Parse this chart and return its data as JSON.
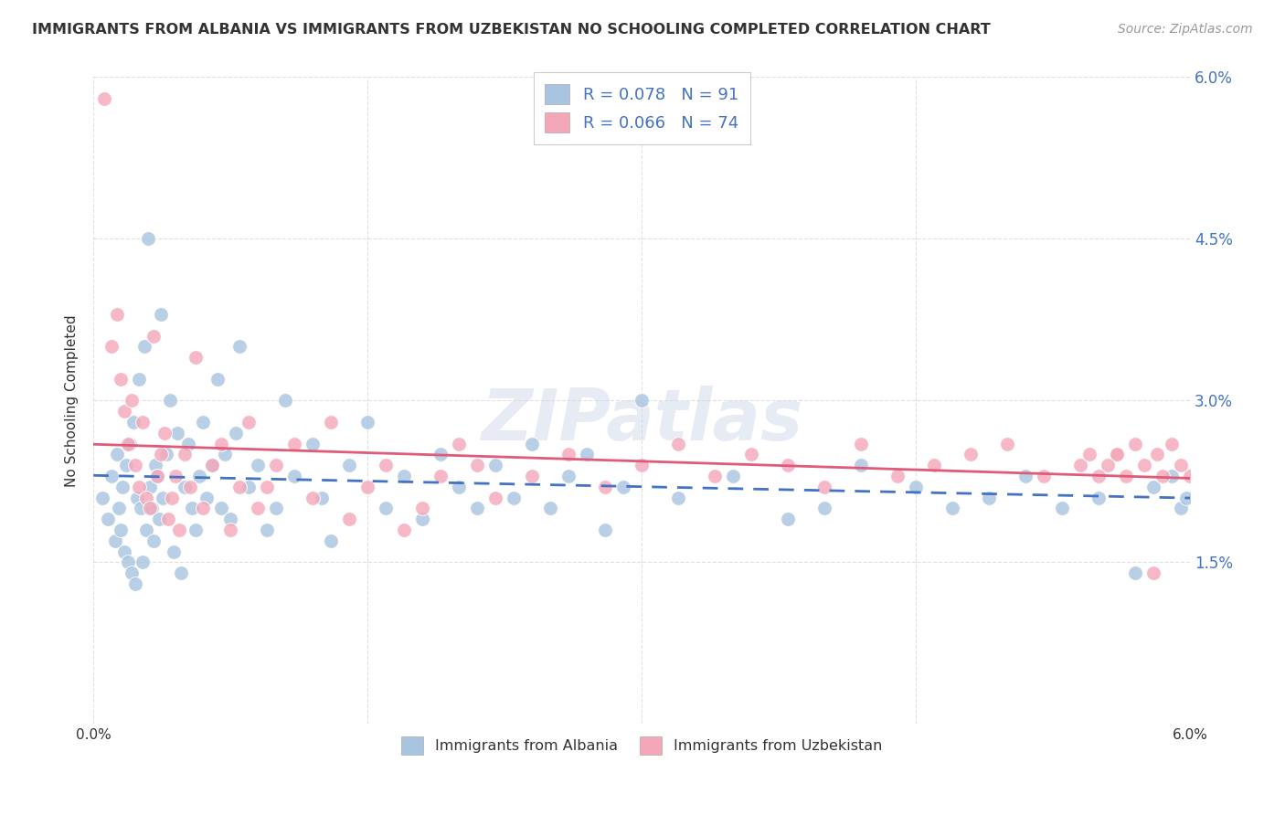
{
  "title": "IMMIGRANTS FROM ALBANIA VS IMMIGRANTS FROM UZBEKISTAN NO SCHOOLING COMPLETED CORRELATION CHART",
  "source": "Source: ZipAtlas.com",
  "ylabel": "No Schooling Completed",
  "xlim": [
    0.0,
    6.0
  ],
  "ylim": [
    0.0,
    6.0
  ],
  "albania_R": 0.078,
  "albania_N": 91,
  "uzbekistan_R": 0.066,
  "uzbekistan_N": 74,
  "albania_color": "#a8c4e0",
  "uzbekistan_color": "#f4a7b9",
  "albania_line_color": "#4472c4",
  "uzbekistan_line_color": "#e05a7a",
  "watermark": "ZIPatlas",
  "background_color": "#ffffff",
  "grid_color": "#cccccc",
  "tick_color": "#4472c4",
  "albania_x": [
    0.05,
    0.08,
    0.1,
    0.12,
    0.13,
    0.14,
    0.15,
    0.16,
    0.17,
    0.18,
    0.19,
    0.2,
    0.21,
    0.22,
    0.23,
    0.24,
    0.25,
    0.26,
    0.27,
    0.28,
    0.29,
    0.3,
    0.31,
    0.32,
    0.33,
    0.34,
    0.35,
    0.36,
    0.37,
    0.38,
    0.4,
    0.42,
    0.44,
    0.46,
    0.48,
    0.5,
    0.52,
    0.54,
    0.56,
    0.58,
    0.6,
    0.62,
    0.65,
    0.68,
    0.7,
    0.72,
    0.75,
    0.78,
    0.8,
    0.85,
    0.9,
    0.95,
    1.0,
    1.05,
    1.1,
    1.2,
    1.25,
    1.3,
    1.4,
    1.5,
    1.6,
    1.7,
    1.8,
    1.9,
    2.0,
    2.1,
    2.2,
    2.3,
    2.4,
    2.5,
    2.6,
    2.7,
    2.8,
    2.9,
    3.0,
    3.2,
    3.5,
    3.8,
    4.0,
    4.2,
    4.5,
    4.7,
    4.9,
    5.1,
    5.3,
    5.5,
    5.7,
    5.8,
    5.9,
    5.95,
    5.98
  ],
  "albania_y": [
    2.1,
    1.9,
    2.3,
    1.7,
    2.5,
    2.0,
    1.8,
    2.2,
    1.6,
    2.4,
    1.5,
    2.6,
    1.4,
    2.8,
    1.3,
    2.1,
    3.2,
    2.0,
    1.5,
    3.5,
    1.8,
    4.5,
    2.2,
    2.0,
    1.7,
    2.4,
    2.3,
    1.9,
    3.8,
    2.1,
    2.5,
    3.0,
    1.6,
    2.7,
    1.4,
    2.2,
    2.6,
    2.0,
    1.8,
    2.3,
    2.8,
    2.1,
    2.4,
    3.2,
    2.0,
    2.5,
    1.9,
    2.7,
    3.5,
    2.2,
    2.4,
    1.8,
    2.0,
    3.0,
    2.3,
    2.6,
    2.1,
    1.7,
    2.4,
    2.8,
    2.0,
    2.3,
    1.9,
    2.5,
    2.2,
    2.0,
    2.4,
    2.1,
    2.6,
    2.0,
    2.3,
    2.5,
    1.8,
    2.2,
    3.0,
    2.1,
    2.3,
    1.9,
    2.0,
    2.4,
    2.2,
    2.0,
    2.1,
    2.3,
    2.0,
    2.1,
    1.4,
    2.2,
    2.3,
    2.0,
    2.1
  ],
  "uzbekistan_x": [
    0.06,
    0.1,
    0.13,
    0.15,
    0.17,
    0.19,
    0.21,
    0.23,
    0.25,
    0.27,
    0.29,
    0.31,
    0.33,
    0.35,
    0.37,
    0.39,
    0.41,
    0.43,
    0.45,
    0.47,
    0.5,
    0.53,
    0.56,
    0.6,
    0.65,
    0.7,
    0.75,
    0.8,
    0.85,
    0.9,
    0.95,
    1.0,
    1.1,
    1.2,
    1.3,
    1.4,
    1.5,
    1.6,
    1.7,
    1.8,
    1.9,
    2.0,
    2.1,
    2.2,
    2.4,
    2.6,
    2.8,
    3.0,
    3.2,
    3.4,
    3.6,
    3.8,
    4.0,
    4.2,
    4.4,
    4.6,
    4.8,
    5.0,
    5.2,
    5.4,
    5.6,
    5.8,
    6.0,
    5.95,
    5.9,
    5.85,
    5.82,
    5.75,
    5.7,
    5.65,
    5.6,
    5.55,
    5.5,
    5.45
  ],
  "uzbekistan_y": [
    5.8,
    3.5,
    3.8,
    3.2,
    2.9,
    2.6,
    3.0,
    2.4,
    2.2,
    2.8,
    2.1,
    2.0,
    3.6,
    2.3,
    2.5,
    2.7,
    1.9,
    2.1,
    2.3,
    1.8,
    2.5,
    2.2,
    3.4,
    2.0,
    2.4,
    2.6,
    1.8,
    2.2,
    2.8,
    2.0,
    2.2,
    2.4,
    2.6,
    2.1,
    2.8,
    1.9,
    2.2,
    2.4,
    1.8,
    2.0,
    2.3,
    2.6,
    2.4,
    2.1,
    2.3,
    2.5,
    2.2,
    2.4,
    2.6,
    2.3,
    2.5,
    2.4,
    2.2,
    2.6,
    2.3,
    2.4,
    2.5,
    2.6,
    2.3,
    2.4,
    2.5,
    1.4,
    2.3,
    2.4,
    2.6,
    2.3,
    2.5,
    2.4,
    2.6,
    2.3,
    2.5,
    2.4,
    2.3,
    2.5
  ]
}
